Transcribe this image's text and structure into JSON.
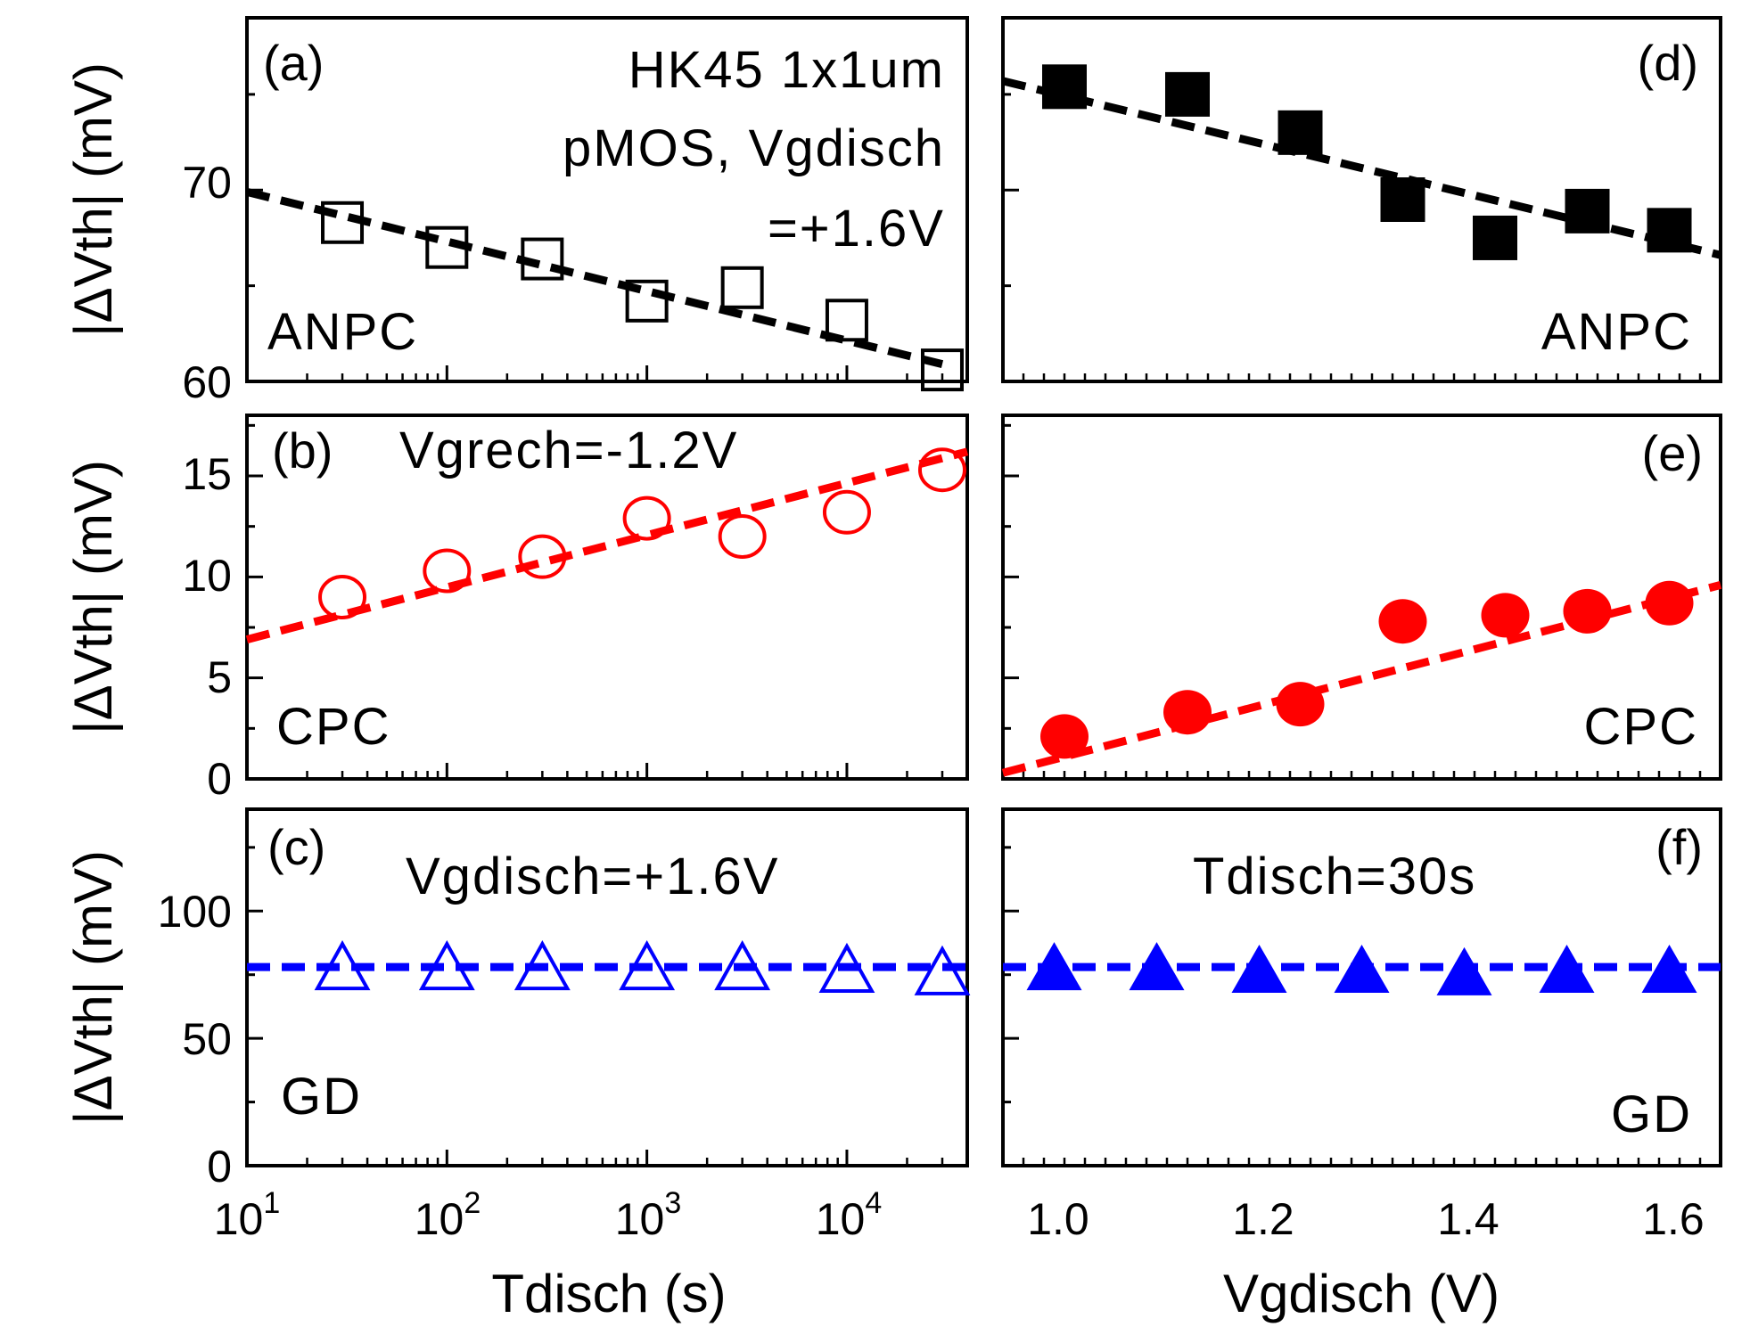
{
  "colors": {
    "anpc": "#000000",
    "cpc": "#ff0000",
    "gd": "#0000ff"
  },
  "chart_data": [
    {
      "panel": "a",
      "panel_label": "(a)",
      "type": "scatter",
      "component_label": "ANPC",
      "annotations": [
        "HK45 1x1um",
        "pMOS, Vgdisch",
        "=+1.6V"
      ],
      "marker": "open-square",
      "color": "#000000",
      "x_scale": "log",
      "xlim": [
        10,
        40000
      ],
      "ylim": [
        60,
        79
      ],
      "ylabel": "|ΔVth| (mV)",
      "yticks": [
        60,
        70
      ],
      "ytick_labels": [
        "60",
        "70"
      ],
      "x": [
        30,
        100,
        300,
        1000,
        3000,
        10000,
        30000
      ],
      "y": [
        68.3,
        67.0,
        66.4,
        64.2,
        64.9,
        63.2,
        60.6
      ],
      "fit": {
        "x": [
          10,
          30000
        ],
        "y": [
          69.9,
          60.9
        ]
      }
    },
    {
      "panel": "b",
      "panel_label": "(b)",
      "type": "scatter",
      "component_label": "CPC",
      "annotations": [
        "Vgrech=-1.2V"
      ],
      "marker": "open-circle",
      "color": "#ff0000",
      "x_scale": "log",
      "xlim": [
        10,
        40000
      ],
      "ylim": [
        0,
        18
      ],
      "ylabel": "|ΔVth| (mV)",
      "yticks": [
        0,
        5,
        10,
        15
      ],
      "ytick_labels": [
        "0",
        "5",
        "10",
        "15"
      ],
      "x": [
        30,
        100,
        300,
        1000,
        3000,
        10000,
        30000
      ],
      "y": [
        9.0,
        10.3,
        11.0,
        12.9,
        12.0,
        13.2,
        15.3
      ],
      "fit": {
        "x": [
          10,
          40000
        ],
        "y": [
          6.9,
          16.2
        ]
      }
    },
    {
      "panel": "c",
      "panel_label": "(c)",
      "type": "scatter",
      "component_label": "GD",
      "annotations": [
        "Vgdisch=+1.6V"
      ],
      "marker": "open-triangle",
      "color": "#0000ff",
      "x_scale": "log",
      "xlim": [
        10,
        40000
      ],
      "ylim": [
        0,
        140
      ],
      "ylabel": "|ΔVth| (mV)",
      "yticks": [
        0,
        50,
        100
      ],
      "ytick_labels": [
        "0",
        "50",
        "100"
      ],
      "xlabel": "Tdisch (s)",
      "xtick_labels": [
        {
          "base": "10",
          "exp": "1"
        },
        {
          "base": "10",
          "exp": "2"
        },
        {
          "base": "10",
          "exp": "3"
        },
        {
          "base": "10",
          "exp": "4"
        }
      ],
      "x": [
        30,
        100,
        300,
        1000,
        3000,
        10000,
        30000
      ],
      "y": [
        78,
        78,
        78,
        78,
        78,
        77,
        76
      ],
      "fit": {
        "x": [
          10,
          40000
        ],
        "y": [
          78,
          78
        ]
      }
    },
    {
      "panel": "d",
      "panel_label": "(d)",
      "type": "scatter",
      "component_label": "ANPC",
      "marker": "filled-square",
      "color": "#000000",
      "xlim": [
        0.95,
        1.65
      ],
      "ylim": [
        60,
        79
      ],
      "x": [
        1.01,
        1.13,
        1.24,
        1.34,
        1.43,
        1.52,
        1.6
      ],
      "y": [
        75.4,
        75.0,
        73.0,
        69.5,
        67.5,
        68.9,
        67.9
      ],
      "fit": {
        "x": [
          0.95,
          1.65
        ],
        "y": [
          75.7,
          66.6
        ]
      }
    },
    {
      "panel": "e",
      "panel_label": "(e)",
      "type": "scatter",
      "component_label": "CPC",
      "marker": "filled-circle",
      "color": "#ff0000",
      "xlim": [
        0.95,
        1.65
      ],
      "ylim": [
        0,
        18
      ],
      "x": [
        1.01,
        1.13,
        1.24,
        1.34,
        1.44,
        1.52,
        1.6
      ],
      "y": [
        2.1,
        3.3,
        3.7,
        7.8,
        8.1,
        8.3,
        8.7
      ],
      "fit": {
        "x": [
          0.95,
          1.65
        ],
        "y": [
          0.3,
          9.6
        ]
      }
    },
    {
      "panel": "f",
      "panel_label": "(f)",
      "type": "scatter",
      "component_label": "GD",
      "annotations": [
        "Tdisch=30s"
      ],
      "marker": "filled-triangle",
      "color": "#0000ff",
      "xlim": [
        0.95,
        1.65
      ],
      "ylim": [
        0,
        140
      ],
      "xlabel": "Vgdisch (V)",
      "xticks": [
        1.0,
        1.2,
        1.4,
        1.6
      ],
      "xtick_labels": [
        "1.0",
        "1.2",
        "1.4",
        "1.6"
      ],
      "x": [
        1.0,
        1.1,
        1.2,
        1.3,
        1.4,
        1.5,
        1.6
      ],
      "y": [
        78,
        78,
        77,
        77,
        76,
        77,
        77
      ],
      "fit": {
        "x": [
          0.95,
          1.65
        ],
        "y": [
          78,
          78
        ]
      }
    }
  ]
}
